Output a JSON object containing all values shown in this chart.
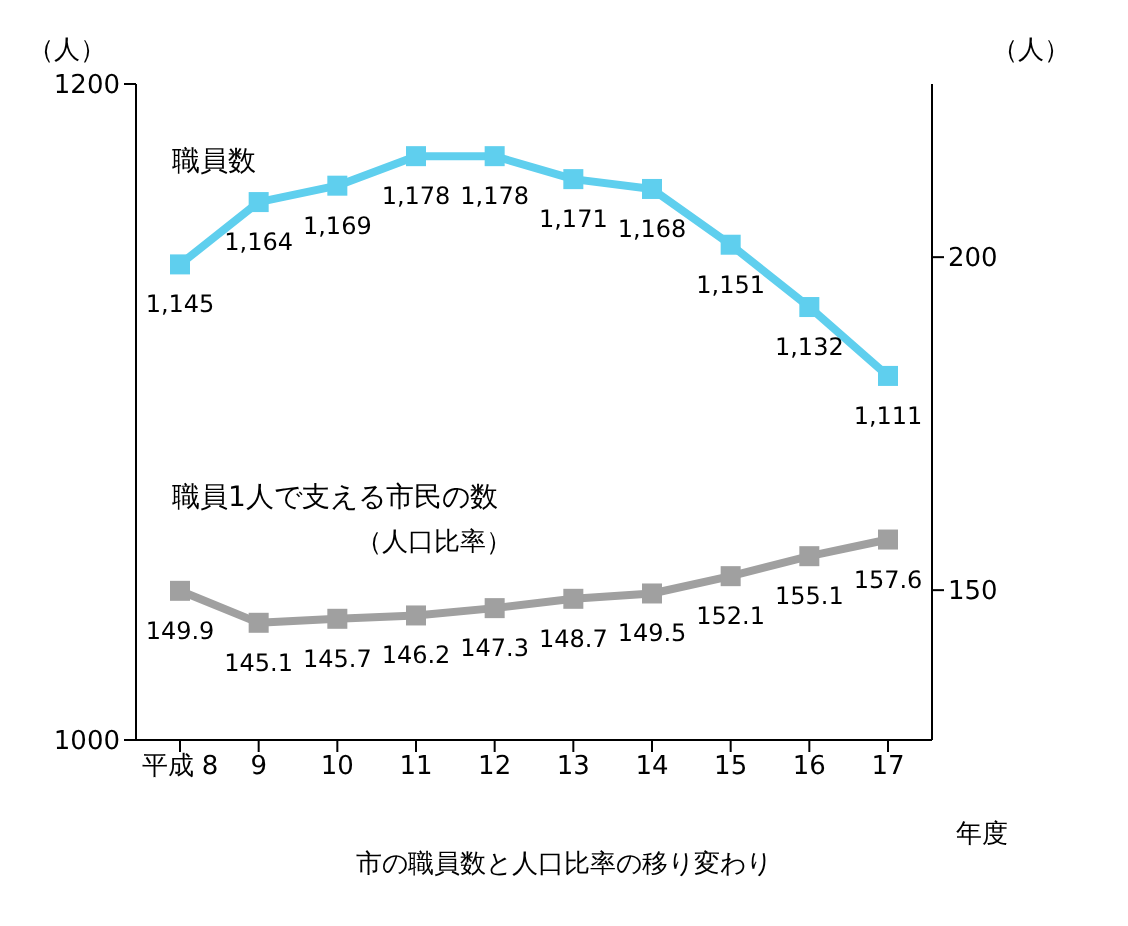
{
  "chart_data": {
    "type": "line",
    "title": "市の職員数と人口比率の移り変わり",
    "xlabel": "年度",
    "ylabel": "（人）",
    "y2label": "（人）",
    "categories": [
      "平成 8",
      "9",
      "10",
      "11",
      "12",
      "13",
      "14",
      "15",
      "16",
      "17"
    ],
    "series": [
      {
        "name": "職員数",
        "color": "#5fcfee",
        "values": [
          1145,
          1164,
          1169,
          1178,
          1178,
          1171,
          1168,
          1151,
          1132,
          1111
        ],
        "value_labels": [
          "1,145",
          "1,164",
          "1,169",
          "1,178",
          "1,178",
          "1,171",
          "1,168",
          "1,151",
          "1,132",
          "1,111"
        ]
      },
      {
        "name": "職員1人で支える市民の数",
        "color": "#a0a0a0",
        "axis": "y2",
        "values": [
          149.9,
          145.1,
          145.7,
          146.2,
          147.3,
          148.7,
          149.5,
          152.1,
          155.1,
          157.6
        ],
        "value_labels": [
          "149.9",
          "145.1",
          "145.7",
          "146.2",
          "147.3",
          "148.7",
          "149.5",
          "152.1",
          "155.1",
          "157.6"
        ]
      }
    ],
    "annotations": [
      "（人口比率）"
    ],
    "ylim": [
      1000,
      1200
    ],
    "yticks": [
      1000,
      1200
    ],
    "y2lim": [
      127.5,
      226
    ],
    "y2ticks": [
      150,
      200
    ],
    "marker": "square",
    "grid": false
  }
}
